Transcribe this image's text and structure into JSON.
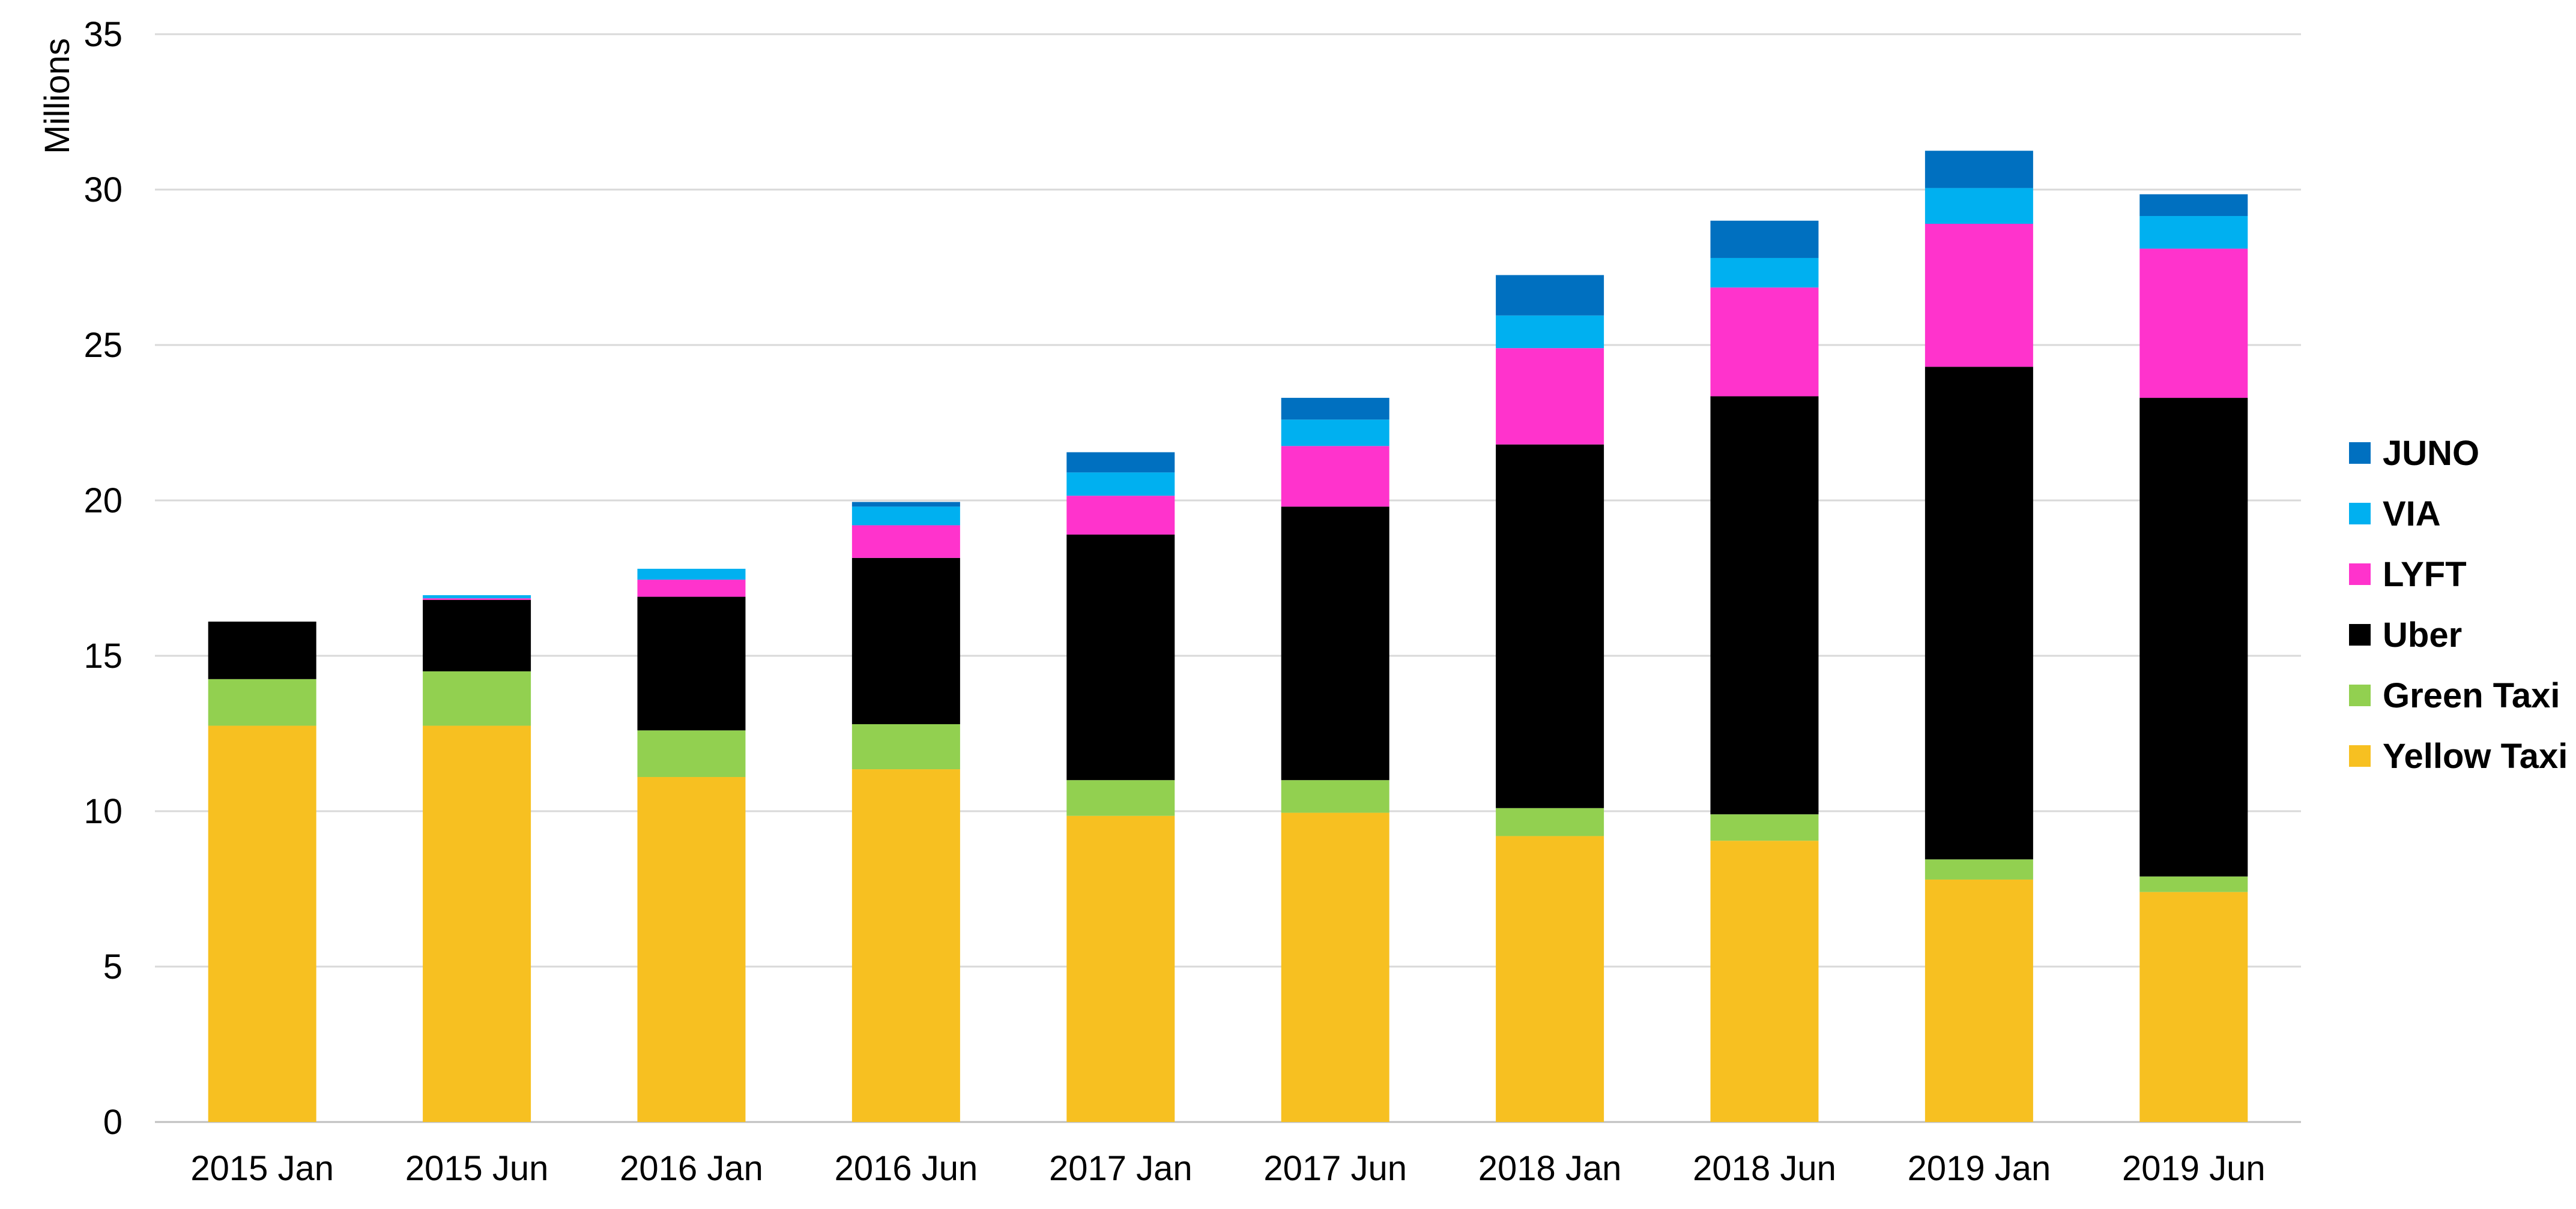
{
  "chart_data": {
    "type": "bar",
    "stacked": true,
    "title": "",
    "xlabel": "",
    "ylabel": "Millions",
    "ylim": [
      0,
      35
    ],
    "yticks": [
      0,
      5,
      10,
      15,
      20,
      25,
      30,
      35
    ],
    "grid": true,
    "legend_position": "right",
    "categories": [
      "2015 Jan",
      "2015 Jun",
      "2016 Jan",
      "2016 Jun",
      "2017 Jan",
      "2017 Jun",
      "2018 Jan",
      "2018 Jun",
      "2019 Jan",
      "2019 Jun"
    ],
    "series": [
      {
        "name": "Yellow Taxi",
        "color": "#F7C021",
        "values": [
          12.75,
          12.75,
          11.1,
          11.35,
          9.85,
          9.95,
          9.2,
          9.05,
          7.8,
          7.4
        ]
      },
      {
        "name": "Green Taxi",
        "color": "#92D050",
        "values": [
          1.5,
          1.75,
          1.5,
          1.45,
          1.15,
          1.05,
          0.9,
          0.85,
          0.65,
          0.5
        ]
      },
      {
        "name": "Uber",
        "color": "#000000",
        "values": [
          1.85,
          2.3,
          4.3,
          5.35,
          7.9,
          8.8,
          11.7,
          13.45,
          15.85,
          15.4
        ]
      },
      {
        "name": "LYFT",
        "color": "#FF33CC",
        "values": [
          0,
          0.05,
          0.55,
          1.05,
          1.25,
          1.95,
          3.1,
          3.5,
          4.6,
          4.8
        ]
      },
      {
        "name": "VIA",
        "color": "#00B0F0",
        "values": [
          0,
          0.1,
          0.35,
          0.6,
          0.75,
          0.85,
          1.05,
          0.95,
          1.15,
          1.05
        ]
      },
      {
        "name": "JUNO",
        "color": "#0070C0",
        "values": [
          0,
          0,
          0,
          0.15,
          0.65,
          0.7,
          1.3,
          1.2,
          1.2,
          0.7
        ]
      }
    ]
  }
}
